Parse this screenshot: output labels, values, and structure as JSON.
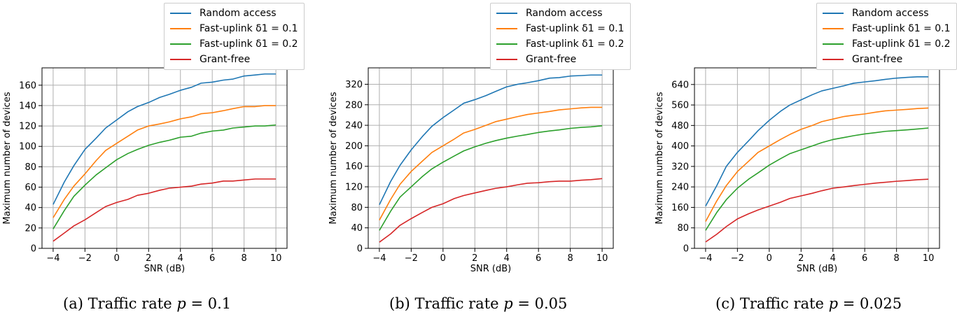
{
  "figures": [
    {
      "caption_prefix": "(a) Traffic rate ",
      "caption_var": "p",
      "caption_eq": " = 0.1"
    },
    {
      "caption_prefix": "(b) Traffic rate ",
      "caption_var": "p",
      "caption_eq": " = 0.05"
    },
    {
      "caption_prefix": "(c) Traffic rate ",
      "caption_var": "p",
      "caption_eq": " = 0.025"
    }
  ],
  "colors": {
    "Random access": "#1f77b4",
    "Fast-uplink d1 = 0.1": "#ff7f0e",
    "Fast-uplink d1 = 0.2": "#2ca02c",
    "Grant-free": "#d62728",
    "grid": "#b0b0b0"
  },
  "chart_data": [
    {
      "type": "line",
      "xlabel": "SNR (dB)",
      "ylabel": "Maximum number of devices",
      "xlim": [
        -4.7,
        10.7
      ],
      "ylim": [
        0,
        177
      ],
      "xticks": [
        -4,
        -2,
        0,
        2,
        4,
        6,
        8,
        10
      ],
      "yticks": [
        0,
        20,
        40,
        60,
        80,
        100,
        120,
        140,
        160
      ],
      "grid": true,
      "legend_position": "top-right, above plot",
      "x": [
        -4,
        -3.3,
        -2.7,
        -2,
        -1.3,
        -0.7,
        0,
        0.7,
        1.3,
        2,
        2.7,
        3.3,
        4,
        4.7,
        5.3,
        6,
        6.7,
        7.3,
        8,
        8.7,
        9.3,
        10
      ],
      "series": [
        {
          "name": "Random access",
          "values": [
            43,
            65,
            81,
            97,
            108,
            118,
            126,
            134,
            139,
            143,
            148,
            151,
            155,
            158,
            162,
            163,
            165,
            166,
            169,
            170,
            171,
            171
          ]
        },
        {
          "name": "Fast-uplink δ1 = 0.1",
          "values": [
            30,
            48,
            61,
            73,
            86,
            96,
            103,
            110,
            116,
            120,
            122,
            124,
            127,
            129,
            132,
            133,
            135,
            137,
            139,
            139,
            140,
            140
          ]
        },
        {
          "name": "Fast-uplink δ1 = 0.2",
          "values": [
            19,
            37,
            51,
            62,
            72,
            79,
            87,
            93,
            97,
            101,
            104,
            106,
            109,
            110,
            113,
            115,
            116,
            118,
            119,
            120,
            120,
            121
          ]
        },
        {
          "name": "Grant-free",
          "values": [
            7,
            15,
            22,
            28,
            35,
            41,
            45,
            48,
            52,
            54,
            57,
            59,
            60,
            61,
            63,
            64,
            66,
            66,
            67,
            68,
            68,
            68
          ]
        }
      ]
    },
    {
      "type": "line",
      "xlabel": "SNR (dB)",
      "ylabel": "Maximum number of devices",
      "xlim": [
        -4.7,
        10.7
      ],
      "ylim": [
        0,
        352
      ],
      "xticks": [
        -4,
        -2,
        0,
        2,
        4,
        6,
        8,
        10
      ],
      "yticks": [
        0,
        40,
        80,
        120,
        160,
        200,
        240,
        280,
        320
      ],
      "grid": true,
      "legend_position": "top-right, above plot",
      "x": [
        -4,
        -3.3,
        -2.7,
        -2,
        -1.3,
        -0.7,
        0,
        0.7,
        1.3,
        2,
        2.7,
        3.3,
        4,
        4.7,
        5.3,
        6,
        6.7,
        7.3,
        8,
        8.7,
        9.3,
        10
      ],
      "series": [
        {
          "name": "Random access",
          "values": [
            85,
            130,
            162,
            192,
            218,
            238,
            255,
            270,
            283,
            290,
            298,
            306,
            315,
            320,
            323,
            327,
            332,
            333,
            336,
            337,
            338,
            338
          ]
        },
        {
          "name": "Fast-uplink δ1 = 0.1",
          "values": [
            55,
            95,
            125,
            150,
            170,
            187,
            200,
            213,
            225,
            232,
            240,
            247,
            252,
            257,
            261,
            264,
            267,
            270,
            272,
            274,
            275,
            275
          ]
        },
        {
          "name": "Fast-uplink δ1 = 0.2",
          "values": [
            35,
            72,
            100,
            120,
            140,
            155,
            168,
            180,
            190,
            198,
            205,
            210,
            215,
            219,
            222,
            226,
            229,
            231,
            234,
            236,
            237,
            239
          ]
        },
        {
          "name": "Grant-free",
          "values": [
            12,
            28,
            45,
            58,
            70,
            80,
            87,
            97,
            103,
            108,
            113,
            117,
            120,
            124,
            127,
            128,
            130,
            131,
            131,
            133,
            134,
            136
          ]
        }
      ]
    },
    {
      "type": "line",
      "xlabel": "SNR (dB)",
      "ylabel": "Maximum number of devices",
      "xlim": [
        -4.7,
        10.7
      ],
      "ylim": [
        0,
        705
      ],
      "xticks": [
        -4,
        -2,
        0,
        2,
        4,
        6,
        8,
        10
      ],
      "yticks": [
        0,
        80,
        160,
        240,
        320,
        400,
        480,
        560,
        640
      ],
      "grid": true,
      "legend_position": "top-right, above plot",
      "x": [
        -4,
        -3.3,
        -2.7,
        -2,
        -1.3,
        -0.7,
        0,
        0.7,
        1.3,
        2,
        2.7,
        3.3,
        4,
        4.7,
        5.3,
        6,
        6.7,
        7.3,
        8,
        8.7,
        9.3,
        10
      ],
      "series": [
        {
          "name": "Random access",
          "values": [
            165,
            245,
            320,
            375,
            420,
            460,
            500,
            535,
            560,
            580,
            600,
            615,
            625,
            635,
            645,
            650,
            655,
            660,
            665,
            668,
            670,
            670
          ]
        },
        {
          "name": "Fast-uplink δ1 = 0.1",
          "values": [
            105,
            185,
            245,
            300,
            340,
            375,
            400,
            425,
            445,
            465,
            480,
            495,
            505,
            515,
            520,
            525,
            532,
            537,
            540,
            543,
            546,
            548
          ]
        },
        {
          "name": "Fast-uplink δ1 = 0.2",
          "values": [
            70,
            140,
            190,
            235,
            270,
            295,
            325,
            350,
            370,
            385,
            400,
            413,
            425,
            433,
            440,
            447,
            452,
            457,
            460,
            463,
            466,
            470
          ]
        },
        {
          "name": "Grant-free",
          "values": [
            25,
            55,
            85,
            115,
            135,
            150,
            165,
            180,
            195,
            205,
            215,
            225,
            235,
            240,
            245,
            250,
            255,
            258,
            262,
            265,
            268,
            270
          ]
        }
      ]
    }
  ]
}
